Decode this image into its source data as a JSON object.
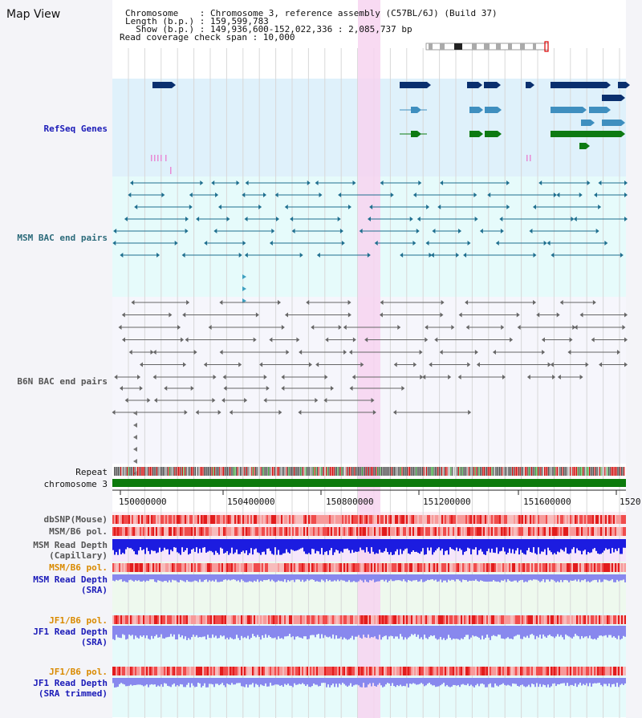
{
  "view": {
    "title": "Map View",
    "chromosome_line": "Chromosome    : Chromosome 3, reference assembly (C57BL/6J) (Build 37)",
    "length_line": "Length (b.p.) : 159,599,783",
    "show_line": "  Show (b.p.) : 149,936,600-152,022,336 : 2,085,737 bp",
    "coverage_line": "Read coverage check span : 10,000"
  },
  "tracks": {
    "refseq": "RefSeq Genes",
    "msm_bac": "MSM BAC end pairs",
    "b6n_bac": "B6N BAC end pairs",
    "repeat": "Repeat",
    "chromosome": "chromosome 3",
    "dbsnp": "dbSNP(Mouse)",
    "msm_b6_pol": "MSM/B6 pol.",
    "msm_depth_cap": "MSM Read Depth\n(Capillary)",
    "msm_b6_pol2": "MSM/B6 pol.",
    "msm_depth_sra": "MSM Read Depth\n(SRA)",
    "jf1_b6_pol": "JF1/B6 pol.",
    "jf1_depth_sra": "JF1 Read Depth\n(SRA)",
    "jf1_b6_pol2": "JF1/B6 pol.",
    "jf1_depth_trim": "JF1 Read Depth\n(SRA trimmed)"
  },
  "axis": {
    "ticks": [
      "150000000",
      "150400000",
      "150800000",
      "151200000",
      "151600000",
      "1520"
    ]
  },
  "colors": {
    "refseq_bg": "#dff1fb",
    "msm_bg": "#e6fbfb",
    "b6n_bg": "#f6f6fc",
    "highlight": "#f7d4f0",
    "gene_navy": "#0a2f6e",
    "gene_blue": "#3f8fbf",
    "gene_green": "#0d7a12",
    "bac_teal": "#1f6f8f",
    "bac_gray": "#666666",
    "chrom_green": "#0c7a0c",
    "depth_blue": "#1c1ce0",
    "depth_light": "#8888ee"
  }
}
